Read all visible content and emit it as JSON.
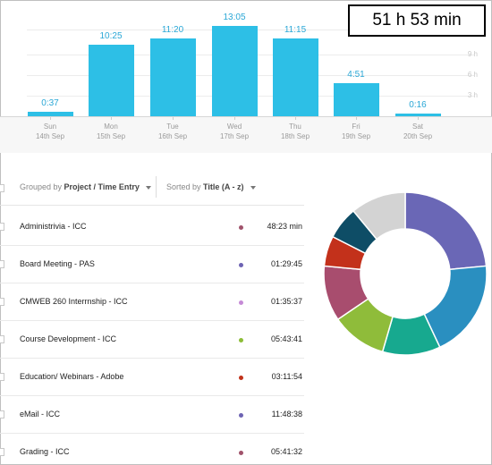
{
  "summary": {
    "total_label": "51 h 53 min"
  },
  "chart_data": {
    "type": "bar",
    "categories": [
      "Sun 14th Sep",
      "Mon 15th Sep",
      "Tue 16th Sep",
      "Wed 17th Sep",
      "Thu 18th Sep",
      "Fri 19th Sep",
      "Sat 20th Sep"
    ],
    "day_names": [
      "Sun",
      "Mon",
      "Tue",
      "Wed",
      "Thu",
      "Fri",
      "Sat"
    ],
    "dates": [
      "14th Sep",
      "15th Sep",
      "16th Sep",
      "17th Sep",
      "18th Sep",
      "19th Sep",
      "20th Sep"
    ],
    "value_labels": [
      "0:37",
      "10:25",
      "11:20",
      "13:05",
      "11:15",
      "4:51",
      "0:16"
    ],
    "values_hours": [
      0.6167,
      10.4167,
      11.3333,
      13.0833,
      11.25,
      4.85,
      0.2667
    ],
    "y_ticks": [
      "9 h",
      "6 h",
      "3 h"
    ],
    "y_tick_values": [
      9,
      6,
      3
    ],
    "ylim": [
      0,
      13.5
    ],
    "color": "#2dbfe6"
  },
  "toolbar": {
    "grouped_prefix": "Grouped by",
    "grouped_value": "Project / Time Entry",
    "sorted_prefix": "Sorted by",
    "sorted_value": "Title (A - z)"
  },
  "rows": [
    {
      "title": "Administrivia - ICC",
      "duration": "48:23 min",
      "color": "#a0526b"
    },
    {
      "title": "Board Meeting - PAS",
      "duration": "01:29:45",
      "color": "#6d63b3"
    },
    {
      "title": "CMWEB 260 Interrnship - ICC",
      "duration": "01:35:37",
      "color": "#c58ad6"
    },
    {
      "title": "Course Development - ICC",
      "duration": "05:43:41",
      "color": "#8cbd37"
    },
    {
      "title": "Education/ Webinars - Adobe",
      "duration": "03:11:54",
      "color": "#c1321a"
    },
    {
      "title": "eMail - ICC",
      "duration": "11:48:38",
      "color": "#6d63b3"
    },
    {
      "title": "Grading - ICC",
      "duration": "05:41:32",
      "color": "#a0526b"
    }
  ],
  "donut": {
    "segments": [
      {
        "value": 23.5,
        "color": "#6a67b6"
      },
      {
        "value": 19.5,
        "color": "#2a8fc0"
      },
      {
        "value": 11.5,
        "color": "#17a98f"
      },
      {
        "value": 11.0,
        "color": "#8fbc3a"
      },
      {
        "value": 11.0,
        "color": "#a84d6e"
      },
      {
        "value": 6.0,
        "color": "#c3311b"
      },
      {
        "value": 6.5,
        "color": "#0e4d66"
      },
      {
        "value": 11.0,
        "color": "#d3d3d3"
      }
    ]
  }
}
